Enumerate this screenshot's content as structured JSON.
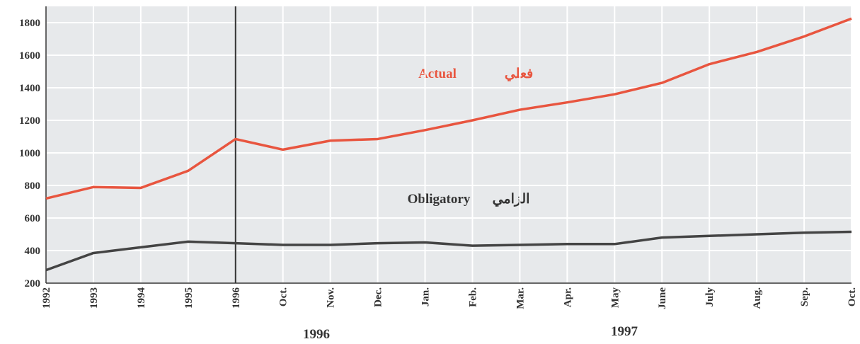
{
  "chart_data": {
    "type": "line",
    "categories": [
      "1992",
      "1993",
      "1994",
      "1995",
      "1996",
      "Oct.",
      "Nov.",
      "Dec.",
      "Jan.",
      "Feb.",
      "Mar.",
      "Apr.",
      "May",
      "June",
      "July",
      "Aug.",
      "Sep.",
      "Oct."
    ],
    "group_labels": [
      "1996",
      "1997"
    ],
    "series": [
      {
        "name": "Actual",
        "color": "#e8553f",
        "values": [
          720,
          790,
          785,
          890,
          1085,
          1020,
          1075,
          1085,
          1140,
          1200,
          1265,
          1310,
          1360,
          1430,
          1545,
          1620,
          1715,
          1825
        ]
      },
      {
        "name": "Obligatory",
        "color": "#444444",
        "values": [
          280,
          385,
          420,
          455,
          445,
          435,
          435,
          445,
          450,
          430,
          435,
          440,
          440,
          480,
          490,
          500,
          510,
          515
        ]
      }
    ],
    "annotations": [
      "Actual",
      "فعلي",
      "Obligatory",
      "الزامي"
    ],
    "ylim": [
      200,
      1900
    ],
    "yticks": [
      200,
      400,
      600,
      800,
      1000,
      1200,
      1400,
      1600,
      1800
    ],
    "grid": true
  }
}
